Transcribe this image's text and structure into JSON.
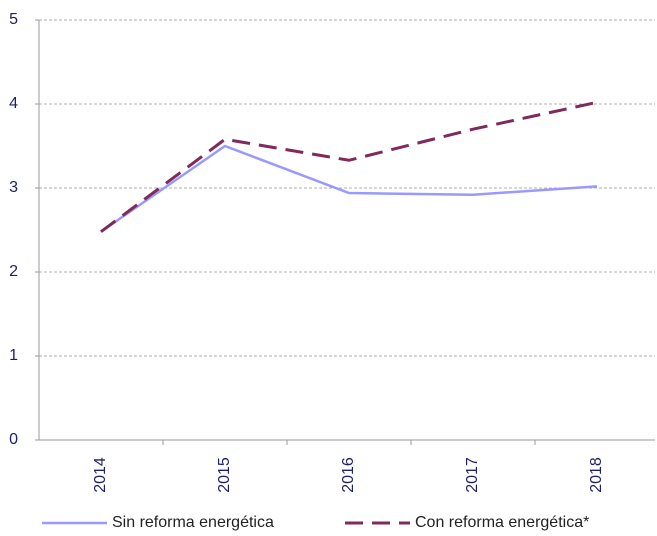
{
  "chart_data": {
    "type": "line",
    "categories": [
      "2014",
      "2015",
      "2016",
      "2017",
      "2018"
    ],
    "series": [
      {
        "name": "Sin reforma energética",
        "color": "#9999ff",
        "style": "solid",
        "values": [
          2.48,
          3.5,
          2.94,
          2.92,
          3.02
        ]
      },
      {
        "name": "Con reforma energética*",
        "color": "#7f2a5a",
        "style": "dashed",
        "values": [
          2.48,
          3.58,
          3.33,
          3.7,
          4.02
        ]
      }
    ],
    "ylim": [
      0,
      5
    ],
    "yticks": [
      0,
      1,
      2,
      3,
      4,
      5
    ],
    "grid": true,
    "legend": "bottom"
  }
}
